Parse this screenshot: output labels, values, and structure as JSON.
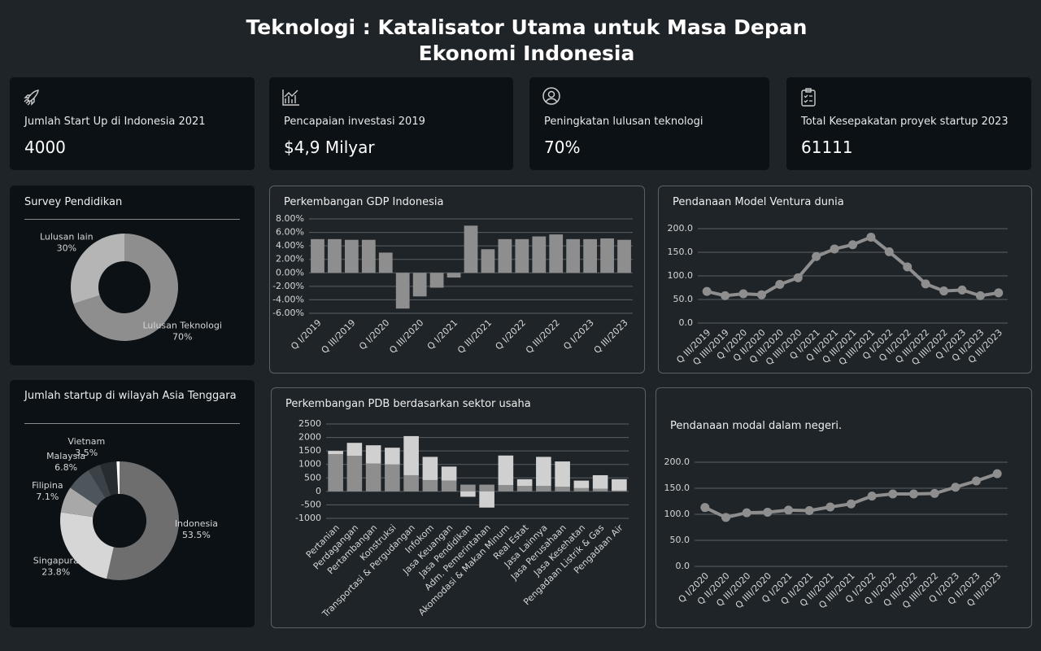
{
  "title": [
    "Teknologi : Katalisator Utama untuk Masa Depan",
    "Ekonomi Indonesia"
  ],
  "kpis": [
    {
      "label": "Jumlah Start Up di Indonesia 2021",
      "value": 4000
    },
    {
      "label": "Pencapaian investasi 2019",
      "value": "$4,9 Milyar"
    },
    {
      "label": "Peningkatan lulusan teknologi",
      "value": "70%"
    },
    {
      "label": "Total Kesepakatan proyek startup 2023",
      "value": 61111
    }
  ],
  "chart_data": [
    {
      "type": "pie",
      "title": "Survey Pendidikan",
      "categories": [
        "Lulusan Teknologi",
        "Lulusan lain"
      ],
      "values": [
        70,
        30
      ],
      "value_labels": [
        "70%",
        "30%"
      ],
      "colors": [
        "#8e8e8e",
        "#b5b5b5"
      ]
    },
    {
      "type": "bar",
      "title": "Perkembangan GDP Indonesia",
      "categories": [
        "Q I/2019",
        null,
        "Q III/2019",
        null,
        "Q I/2020",
        null,
        "Q III/2020",
        null,
        "Q I/2021",
        null,
        "Q III/2021",
        null,
        "Q I/2022",
        null,
        "Q III/2022",
        null,
        "Q I/2023",
        null,
        "Q III/2023"
      ],
      "series": [
        {
          "color": "#8e8e8e",
          "values": [
            5.0,
            5.0,
            4.9,
            4.9,
            3.0,
            -5.3,
            -3.5,
            -2.2,
            -0.7,
            7.0,
            3.5,
            5.0,
            5.0,
            5.4,
            5.7,
            5.0,
            5.0,
            5.1,
            4.9
          ]
        }
      ],
      "ylim": [
        -6,
        8
      ],
      "yticks": [
        {
          "value": -6,
          "label": "-6.00%"
        },
        {
          "value": -4,
          "label": "-4.00%"
        },
        {
          "value": -2,
          "label": "-2.00%"
        },
        {
          "value": 0,
          "label": "0.00%"
        },
        {
          "value": 2,
          "label": "2.00%"
        },
        {
          "value": 4,
          "label": "4.00%"
        },
        {
          "value": 6,
          "label": "6.00%"
        },
        {
          "value": 8,
          "label": "8.00%"
        }
      ],
      "grid": true
    },
    {
      "type": "line",
      "title": "Pendanaan Model Ventura dunia",
      "categories": [
        "Q III/2019",
        "Q IIII/2019",
        "Q I/2020",
        "Q II/2020",
        "Q III/2020",
        "Q IIII/2020",
        "Q I/2021",
        "Q II/2021",
        "Q III/2021",
        "Q IIII/2021",
        "Q I/2022",
        "Q II/2022",
        "Q III/2022",
        "Q IIII/2022",
        "Q I/2023",
        "Q II/2023",
        "Q III/2023"
      ],
      "series": [
        {
          "color": "#8e8e8e",
          "values": [
            67,
            58,
            62,
            60,
            82,
            96,
            141,
            157,
            166,
            182,
            151,
            119,
            83,
            68,
            70,
            58,
            64
          ]
        }
      ],
      "ylim": [
        0,
        200
      ],
      "yticks": [
        {
          "value": 0,
          "label": "0.0"
        },
        {
          "value": 50,
          "label": "50.0"
        },
        {
          "value": 100,
          "label": "100.0"
        },
        {
          "value": 150,
          "label": "150.0"
        },
        {
          "value": 200,
          "label": "200.0"
        }
      ],
      "grid": true
    },
    {
      "type": "pie",
      "title": "Jumlah startup di wilayah Asia Tenggara",
      "categories": [
        "Indonesia",
        "Singapura",
        "Filipina",
        "Malaysia",
        "Vietnam",
        null,
        null
      ],
      "values": [
        53.5,
        23.8,
        7.1,
        6.8,
        3.5,
        4.5,
        0.8
      ],
      "value_labels": [
        "53.5%",
        "23.8%",
        "7.1%",
        "6.8%",
        "3.5%",
        null,
        null
      ],
      "colors": [
        "#6e6e6e",
        "#d6d6d6",
        "#a8a8a8",
        "#4d565c",
        "#3a4247",
        "#262c30",
        "#ffffff"
      ]
    },
    {
      "type": "bar",
      "stacked": true,
      "title": "Perkembangan PDB berdasarkan sektor usaha",
      "categories": [
        "Pertanian",
        "Perdagangan",
        "Pertambangan",
        "Konstruksi",
        "Transportasi & Pergudangan",
        "Infokom",
        "Jasa Keuangan",
        "Jasa Pendidikan",
        "Adm. Pemerintahan",
        "Akomodasi & Makan Minum",
        "Real Estat",
        "Jasa Lainnya",
        "Jasa Perusahaan",
        "Jasa Kesehatan",
        "Pengadaan Listrik & Gas",
        "Pengadaan Air"
      ],
      "series": [
        {
          "color": "#8e8e8e",
          "values": [
            1380,
            1320,
            1030,
            1000,
            600,
            420,
            400,
            250,
            250,
            230,
            200,
            200,
            170,
            120,
            100,
            30
          ]
        },
        {
          "color": "#d0d0d0",
          "values": [
            120,
            480,
            680,
            620,
            1450,
            860,
            520,
            -200,
            -600,
            1100,
            250,
            1080,
            940,
            280,
            500,
            420
          ]
        }
      ],
      "ylim": [
        -1000,
        2500
      ],
      "yticks": [
        -1000,
        -500,
        0,
        500,
        1000,
        1500,
        2000,
        2500
      ],
      "grid": true
    },
    {
      "type": "line",
      "title": "Pendanaan modal dalam negeri.",
      "categories": [
        "Q I/2020",
        "Q II/2020",
        "Q III/2020",
        "Q IIII/2020",
        "Q I/2021",
        "Q II/2021",
        "Q III/2021",
        "Q IIII/2021",
        "Q I/2022",
        "Q II/2022",
        "Q III/2022",
        "Q IIII/2022",
        "Q I/2023",
        "Q II/2023",
        "Q III/2023"
      ],
      "series": [
        {
          "color": "#8e8e8e",
          "values": [
            113,
            94,
            103,
            104,
            108,
            107,
            114,
            120,
            135,
            139,
            139,
            140,
            152,
            164,
            178
          ]
        }
      ],
      "ylim": [
        0,
        200
      ],
      "yticks": [
        {
          "value": 0,
          "label": "0.0"
        },
        {
          "value": 50,
          "label": "50.0"
        },
        {
          "value": 100,
          "label": "100.0"
        },
        {
          "value": 150,
          "label": "150.0"
        },
        {
          "value": 200,
          "label": "200.0"
        }
      ],
      "grid": true
    }
  ]
}
